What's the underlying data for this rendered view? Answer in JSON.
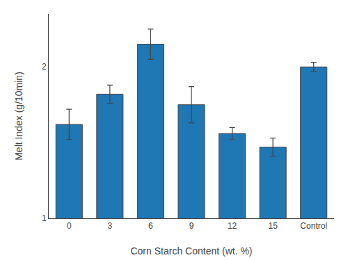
{
  "chart_data": {
    "type": "bar",
    "categories": [
      "0",
      "3",
      "6",
      "9",
      "12",
      "15",
      "Control"
    ],
    "values": [
      1.62,
      1.82,
      2.15,
      1.75,
      1.56,
      1.47,
      2.0
    ],
    "errors": [
      0.1,
      0.06,
      0.1,
      0.12,
      0.04,
      0.06,
      0.03
    ],
    "xlabel": "Corn Starch Content (wt. %)",
    "ylabel": "Melt Index (g/10min)",
    "ylim": [
      1.0,
      2.35
    ],
    "yticks": [
      1,
      2
    ],
    "grid": false
  }
}
